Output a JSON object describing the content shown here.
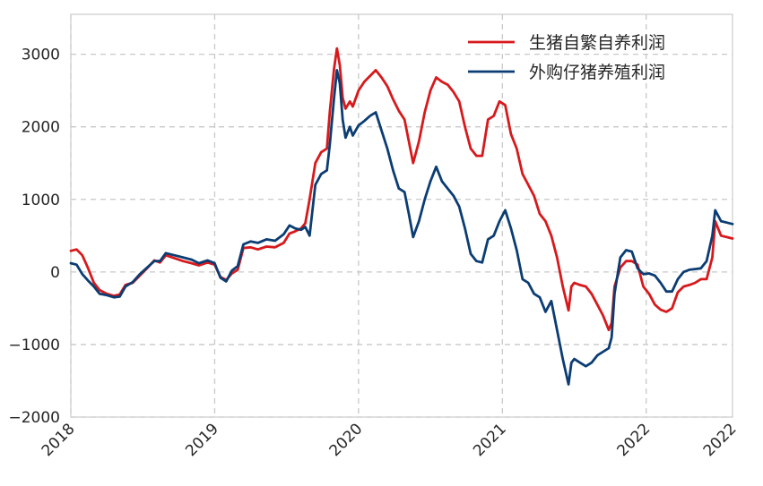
{
  "chart_data": {
    "type": "line",
    "title": "",
    "xlabel": "",
    "ylabel": "",
    "xlim": [
      2018,
      2022.6
    ],
    "ylim": [
      -2000,
      3550
    ],
    "grid": true,
    "legend_position": "top-right",
    "yticks": [
      3000,
      2000,
      1000,
      0,
      -1000,
      -2000
    ],
    "ytick_labels": [
      "3000",
      "2000",
      "1000",
      "0",
      "−1000",
      "−2000"
    ],
    "xticks": [
      2018,
      2019,
      2020,
      2021,
      2022,
      2022.6
    ],
    "xtick_labels": [
      "2018",
      "2019",
      "2020",
      "2021",
      "2022",
      "2022"
    ],
    "series": [
      {
        "name": "生猪自繁自养利润",
        "color": "#d7191c",
        "points": [
          [
            2018.0,
            290
          ],
          [
            2018.04,
            310
          ],
          [
            2018.08,
            230
          ],
          [
            2018.12,
            50
          ],
          [
            2018.16,
            -150
          ],
          [
            2018.2,
            -250
          ],
          [
            2018.25,
            -300
          ],
          [
            2018.3,
            -330
          ],
          [
            2018.34,
            -310
          ],
          [
            2018.38,
            -180
          ],
          [
            2018.43,
            -150
          ],
          [
            2018.48,
            -50
          ],
          [
            2018.53,
            50
          ],
          [
            2018.58,
            160
          ],
          [
            2018.62,
            130
          ],
          [
            2018.66,
            230
          ],
          [
            2018.72,
            190
          ],
          [
            2018.78,
            150
          ],
          [
            2018.84,
            120
          ],
          [
            2018.89,
            90
          ],
          [
            2018.95,
            130
          ],
          [
            2019.0,
            100
          ],
          [
            2019.04,
            -70
          ],
          [
            2019.08,
            -110
          ],
          [
            2019.12,
            -20
          ],
          [
            2019.16,
            30
          ],
          [
            2019.2,
            330
          ],
          [
            2019.25,
            340
          ],
          [
            2019.3,
            310
          ],
          [
            2019.36,
            350
          ],
          [
            2019.42,
            340
          ],
          [
            2019.48,
            400
          ],
          [
            2019.52,
            530
          ],
          [
            2019.56,
            560
          ],
          [
            2019.6,
            600
          ],
          [
            2019.63,
            670
          ],
          [
            2019.66,
            1000
          ],
          [
            2019.7,
            1500
          ],
          [
            2019.74,
            1650
          ],
          [
            2019.78,
            1700
          ],
          [
            2019.8,
            2200
          ],
          [
            2019.83,
            2800
          ],
          [
            2019.85,
            3080
          ],
          [
            2019.87,
            2850
          ],
          [
            2019.89,
            2400
          ],
          [
            2019.91,
            2250
          ],
          [
            2019.94,
            2350
          ],
          [
            2019.96,
            2280
          ],
          [
            2020.0,
            2500
          ],
          [
            2020.04,
            2620
          ],
          [
            2020.08,
            2700
          ],
          [
            2020.12,
            2780
          ],
          [
            2020.16,
            2680
          ],
          [
            2020.2,
            2560
          ],
          [
            2020.24,
            2380
          ],
          [
            2020.28,
            2220
          ],
          [
            2020.32,
            2100
          ],
          [
            2020.35,
            1800
          ],
          [
            2020.38,
            1500
          ],
          [
            2020.42,
            1800
          ],
          [
            2020.46,
            2200
          ],
          [
            2020.5,
            2500
          ],
          [
            2020.54,
            2680
          ],
          [
            2020.58,
            2620
          ],
          [
            2020.62,
            2580
          ],
          [
            2020.66,
            2480
          ],
          [
            2020.7,
            2350
          ],
          [
            2020.74,
            2000
          ],
          [
            2020.78,
            1700
          ],
          [
            2020.82,
            1600
          ],
          [
            2020.86,
            1600
          ],
          [
            2020.9,
            2100
          ],
          [
            2020.94,
            2150
          ],
          [
            2020.98,
            2350
          ],
          [
            2021.02,
            2300
          ],
          [
            2021.06,
            1900
          ],
          [
            2021.1,
            1700
          ],
          [
            2021.14,
            1350
          ],
          [
            2021.18,
            1200
          ],
          [
            2021.22,
            1050
          ],
          [
            2021.26,
            800
          ],
          [
            2021.3,
            700
          ],
          [
            2021.34,
            500
          ],
          [
            2021.38,
            200
          ],
          [
            2021.42,
            -200
          ],
          [
            2021.46,
            -530
          ],
          [
            2021.48,
            -200
          ],
          [
            2021.5,
            -150
          ],
          [
            2021.54,
            -180
          ],
          [
            2021.58,
            -200
          ],
          [
            2021.62,
            -300
          ],
          [
            2021.66,
            -450
          ],
          [
            2021.7,
            -600
          ],
          [
            2021.74,
            -800
          ],
          [
            2021.76,
            -700
          ],
          [
            2021.78,
            -200
          ],
          [
            2021.82,
            60
          ],
          [
            2021.86,
            150
          ],
          [
            2021.9,
            150
          ],
          [
            2021.94,
            100
          ],
          [
            2021.98,
            -200
          ],
          [
            2022.02,
            -300
          ],
          [
            2022.06,
            -450
          ],
          [
            2022.1,
            -520
          ],
          [
            2022.14,
            -550
          ],
          [
            2022.18,
            -500
          ],
          [
            2022.22,
            -280
          ],
          [
            2022.26,
            -200
          ],
          [
            2022.3,
            -180
          ],
          [
            2022.34,
            -150
          ],
          [
            2022.38,
            -100
          ],
          [
            2022.42,
            -100
          ],
          [
            2022.46,
            200
          ],
          [
            2022.48,
            700
          ],
          [
            2022.52,
            500
          ],
          [
            2022.56,
            480
          ],
          [
            2022.6,
            460
          ]
        ]
      },
      {
        "name": "外购仔猪养殖利润",
        "color": "#0b3d73",
        "points": [
          [
            2018.0,
            120
          ],
          [
            2018.04,
            100
          ],
          [
            2018.08,
            -30
          ],
          [
            2018.12,
            -120
          ],
          [
            2018.16,
            -200
          ],
          [
            2018.2,
            -300
          ],
          [
            2018.25,
            -320
          ],
          [
            2018.3,
            -350
          ],
          [
            2018.34,
            -340
          ],
          [
            2018.38,
            -200
          ],
          [
            2018.43,
            -140
          ],
          [
            2018.48,
            -30
          ],
          [
            2018.53,
            60
          ],
          [
            2018.58,
            150
          ],
          [
            2018.62,
            150
          ],
          [
            2018.66,
            260
          ],
          [
            2018.72,
            230
          ],
          [
            2018.78,
            200
          ],
          [
            2018.84,
            170
          ],
          [
            2018.89,
            120
          ],
          [
            2018.95,
            160
          ],
          [
            2019.0,
            120
          ],
          [
            2019.04,
            -80
          ],
          [
            2019.08,
            -130
          ],
          [
            2019.12,
            20
          ],
          [
            2019.16,
            80
          ],
          [
            2019.2,
            380
          ],
          [
            2019.25,
            420
          ],
          [
            2019.3,
            400
          ],
          [
            2019.36,
            450
          ],
          [
            2019.42,
            430
          ],
          [
            2019.48,
            520
          ],
          [
            2019.52,
            640
          ],
          [
            2019.56,
            600
          ],
          [
            2019.6,
            580
          ],
          [
            2019.63,
            620
          ],
          [
            2019.66,
            500
          ],
          [
            2019.7,
            1200
          ],
          [
            2019.74,
            1350
          ],
          [
            2019.78,
            1400
          ],
          [
            2019.8,
            1750
          ],
          [
            2019.83,
            2400
          ],
          [
            2019.85,
            2780
          ],
          [
            2019.87,
            2600
          ],
          [
            2019.89,
            2100
          ],
          [
            2019.91,
            1850
          ],
          [
            2019.94,
            2000
          ],
          [
            2019.96,
            1880
          ],
          [
            2020.0,
            2020
          ],
          [
            2020.04,
            2080
          ],
          [
            2020.08,
            2150
          ],
          [
            2020.12,
            2200
          ],
          [
            2020.16,
            1950
          ],
          [
            2020.2,
            1700
          ],
          [
            2020.24,
            1400
          ],
          [
            2020.28,
            1150
          ],
          [
            2020.32,
            1100
          ],
          [
            2020.35,
            800
          ],
          [
            2020.38,
            480
          ],
          [
            2020.42,
            700
          ],
          [
            2020.46,
            1000
          ],
          [
            2020.5,
            1250
          ],
          [
            2020.54,
            1450
          ],
          [
            2020.58,
            1250
          ],
          [
            2020.62,
            1150
          ],
          [
            2020.66,
            1050
          ],
          [
            2020.7,
            900
          ],
          [
            2020.74,
            600
          ],
          [
            2020.78,
            250
          ],
          [
            2020.82,
            150
          ],
          [
            2020.86,
            130
          ],
          [
            2020.9,
            450
          ],
          [
            2020.94,
            500
          ],
          [
            2020.98,
            700
          ],
          [
            2021.02,
            850
          ],
          [
            2021.06,
            600
          ],
          [
            2021.1,
            300
          ],
          [
            2021.14,
            -100
          ],
          [
            2021.18,
            -150
          ],
          [
            2021.22,
            -300
          ],
          [
            2021.26,
            -350
          ],
          [
            2021.3,
            -550
          ],
          [
            2021.34,
            -400
          ],
          [
            2021.38,
            -800
          ],
          [
            2021.42,
            -1200
          ],
          [
            2021.46,
            -1550
          ],
          [
            2021.48,
            -1250
          ],
          [
            2021.5,
            -1200
          ],
          [
            2021.54,
            -1250
          ],
          [
            2021.58,
            -1300
          ],
          [
            2021.62,
            -1250
          ],
          [
            2021.66,
            -1150
          ],
          [
            2021.7,
            -1100
          ],
          [
            2021.74,
            -1050
          ],
          [
            2021.76,
            -900
          ],
          [
            2021.78,
            -300
          ],
          [
            2021.82,
            200
          ],
          [
            2021.86,
            300
          ],
          [
            2021.9,
            280
          ],
          [
            2021.94,
            50
          ],
          [
            2021.98,
            -30
          ],
          [
            2022.02,
            -20
          ],
          [
            2022.06,
            -50
          ],
          [
            2022.1,
            -150
          ],
          [
            2022.14,
            -270
          ],
          [
            2022.18,
            -270
          ],
          [
            2022.22,
            -100
          ],
          [
            2022.26,
            0
          ],
          [
            2022.3,
            30
          ],
          [
            2022.34,
            40
          ],
          [
            2022.38,
            50
          ],
          [
            2022.42,
            150
          ],
          [
            2022.46,
            500
          ],
          [
            2022.48,
            850
          ],
          [
            2022.52,
            700
          ],
          [
            2022.56,
            680
          ],
          [
            2022.6,
            660
          ]
        ]
      }
    ]
  }
}
